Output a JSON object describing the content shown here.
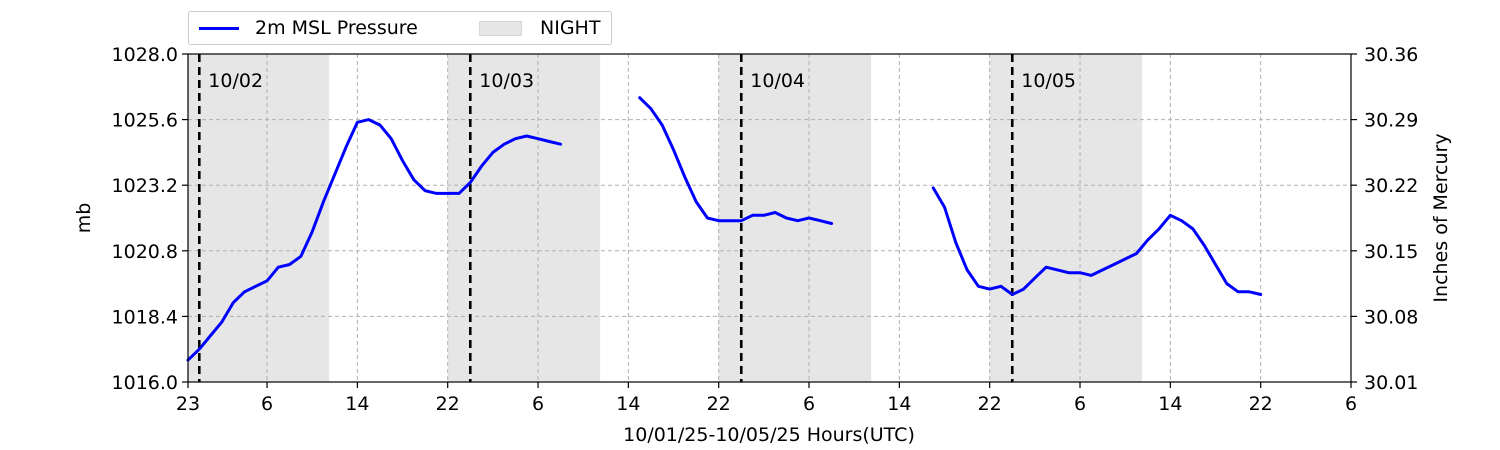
{
  "chart_data": {
    "type": "line",
    "xlabel": "10/01/25-10/05/25  Hours(UTC)",
    "ylabel": "mb",
    "y2label": "Inches of Mercury",
    "x_unit": "hours since 10/01 00 UTC",
    "xlim": [
      23,
      126
    ],
    "ylim": [
      1016.0,
      1028.0
    ],
    "y2lim": [
      30.01,
      30.36
    ],
    "grid": true,
    "legend": {
      "placement": "top-left, above plot",
      "ncol": 2
    },
    "x_ticks": [
      23,
      30,
      38,
      46,
      54,
      62,
      70,
      78,
      86,
      94,
      102,
      110,
      118,
      126
    ],
    "x_tick_labels": [
      "23",
      "6",
      "14",
      "22",
      "6",
      "14",
      "22",
      "6",
      "14",
      "22",
      "6",
      "14",
      "22",
      "6"
    ],
    "y_ticks": [
      1016.0,
      1018.4,
      1020.8,
      1023.2,
      1025.6,
      1028.0
    ],
    "y_tick_labels": [
      "1016.0",
      "1018.4",
      "1020.8",
      "1023.2",
      "1025.6",
      "1028.0"
    ],
    "y2_tick_labels": [
      "30.01",
      "30.08",
      "30.15",
      "30.22",
      "30.29",
      "30.36"
    ],
    "night_periods": [
      {
        "start": 23.0,
        "end": 35.5
      },
      {
        "start": 46.0,
        "end": 59.5
      },
      {
        "start": 70.0,
        "end": 83.5
      },
      {
        "start": 94.0,
        "end": 107.5
      }
    ],
    "midnights": [
      {
        "x": 24,
        "label": "10/02"
      },
      {
        "x": 48,
        "label": "10/03"
      },
      {
        "x": 72,
        "label": "10/04"
      },
      {
        "x": 96,
        "label": "10/05"
      }
    ],
    "series": [
      {
        "name": "2m MSL Pressure",
        "color": "#0000ff",
        "segments": [
          [
            [
              23.0,
              1016.8
            ],
            [
              24.0,
              1017.2
            ],
            [
              25.0,
              1017.7
            ],
            [
              26.0,
              1018.2
            ],
            [
              27.0,
              1018.9
            ],
            [
              28.0,
              1019.3
            ],
            [
              29.0,
              1019.5
            ],
            [
              30.0,
              1019.7
            ],
            [
              31.0,
              1020.2
            ],
            [
              32.0,
              1020.3
            ],
            [
              33.0,
              1020.6
            ],
            [
              34.0,
              1021.5
            ],
            [
              35.0,
              1022.6
            ],
            [
              36.0,
              1023.6
            ],
            [
              37.0,
              1024.6
            ],
            [
              38.0,
              1025.5
            ],
            [
              39.0,
              1025.6
            ],
            [
              40.0,
              1025.4
            ],
            [
              41.0,
              1024.9
            ],
            [
              42.0,
              1024.1
            ],
            [
              43.0,
              1023.4
            ],
            [
              44.0,
              1023.0
            ],
            [
              45.0,
              1022.9
            ],
            [
              46.0,
              1022.9
            ],
            [
              47.0,
              1022.9
            ],
            [
              48.0,
              1023.3
            ],
            [
              49.0,
              1023.9
            ],
            [
              50.0,
              1024.4
            ],
            [
              51.0,
              1024.7
            ],
            [
              52.0,
              1024.9
            ],
            [
              53.0,
              1025.0
            ],
            [
              54.0,
              1024.9
            ],
            [
              55.0,
              1024.8
            ],
            [
              56.0,
              1024.7
            ]
          ],
          [
            [
              63.0,
              1026.4
            ],
            [
              64.0,
              1026.0
            ],
            [
              65.0,
              1025.4
            ],
            [
              66.0,
              1024.5
            ],
            [
              67.0,
              1023.5
            ],
            [
              68.0,
              1022.6
            ],
            [
              69.0,
              1022.0
            ],
            [
              70.0,
              1021.9
            ],
            [
              71.0,
              1021.9
            ],
            [
              72.0,
              1021.9
            ],
            [
              73.0,
              1022.1
            ],
            [
              74.0,
              1022.1
            ],
            [
              75.0,
              1022.2
            ],
            [
              76.0,
              1022.0
            ],
            [
              77.0,
              1021.9
            ],
            [
              78.0,
              1022.0
            ],
            [
              79.0,
              1021.9
            ],
            [
              80.0,
              1021.8
            ]
          ],
          [
            [
              89.0,
              1023.1
            ],
            [
              90.0,
              1022.4
            ],
            [
              91.0,
              1021.1
            ],
            [
              92.0,
              1020.1
            ],
            [
              93.0,
              1019.5
            ],
            [
              94.0,
              1019.4
            ],
            [
              95.0,
              1019.5
            ],
            [
              96.0,
              1019.2
            ],
            [
              97.0,
              1019.4
            ],
            [
              98.0,
              1019.8
            ],
            [
              99.0,
              1020.2
            ],
            [
              100.0,
              1020.1
            ],
            [
              101.0,
              1020.0
            ],
            [
              102.0,
              1020.0
            ],
            [
              103.0,
              1019.9
            ],
            [
              104.0,
              1020.1
            ],
            [
              105.0,
              1020.3
            ],
            [
              106.0,
              1020.5
            ],
            [
              107.0,
              1020.7
            ],
            [
              108.0,
              1021.2
            ],
            [
              109.0,
              1021.6
            ],
            [
              110.0,
              1022.1
            ],
            [
              111.0,
              1021.9
            ],
            [
              112.0,
              1021.6
            ],
            [
              113.0,
              1021.0
            ],
            [
              114.0,
              1020.3
            ],
            [
              115.0,
              1019.6
            ],
            [
              116.0,
              1019.3
            ],
            [
              117.0,
              1019.3
            ],
            [
              118.0,
              1019.2
            ]
          ]
        ]
      }
    ]
  }
}
